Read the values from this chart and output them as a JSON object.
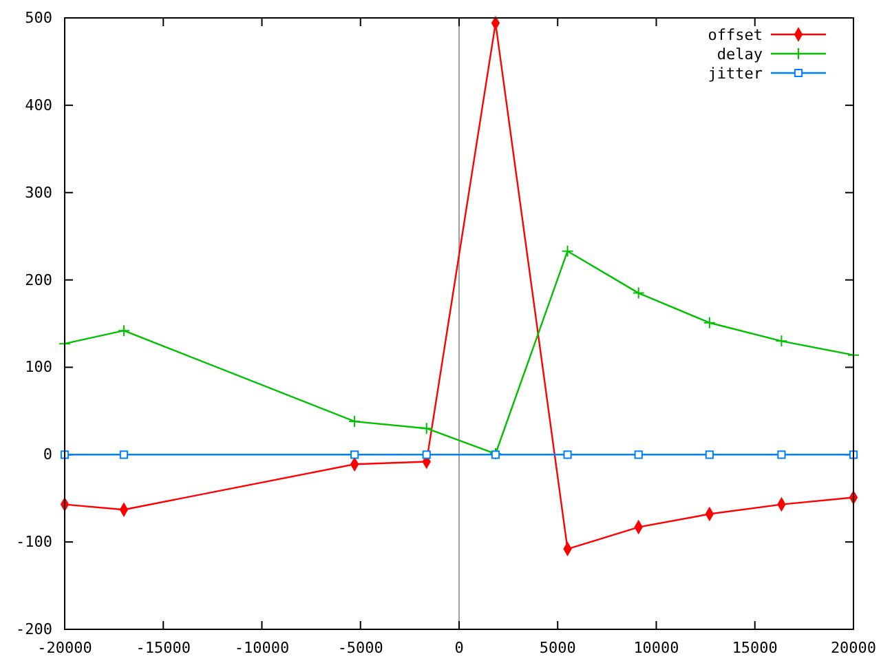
{
  "chart_data": {
    "type": "line",
    "x": [
      -20000,
      -17000,
      -5300,
      -1650,
      1850,
      5500,
      9100,
      12700,
      16350,
      20000
    ],
    "series": [
      {
        "name": "offset",
        "color": "#ff0000",
        "marker": "diamond",
        "values": [
          -57,
          -63,
          -11,
          -8,
          494,
          -108,
          -83,
          -68,
          -57,
          -49
        ]
      },
      {
        "name": "delay",
        "color": "#00c000",
        "marker": "cross",
        "values": [
          127,
          142,
          38,
          30,
          1,
          233,
          185,
          151,
          130,
          114
        ]
      },
      {
        "name": "jitter",
        "color": "#0080ff",
        "marker": "square",
        "values": [
          0,
          0,
          0,
          0,
          0,
          0,
          0,
          0,
          0,
          0
        ]
      }
    ],
    "xlim": [
      -20000,
      20000
    ],
    "xticks": [
      -20000,
      -15000,
      -10000,
      -5000,
      0,
      5000,
      10000,
      15000,
      20000
    ],
    "ylim": [
      -200,
      500
    ],
    "yticks": [
      -200,
      -100,
      0,
      100,
      200,
      300,
      400,
      500
    ],
    "ref_lines": [
      {
        "axis": "x",
        "value": 0,
        "color": "#a0a0a0"
      }
    ],
    "legend": "top right",
    "grid": false
  }
}
